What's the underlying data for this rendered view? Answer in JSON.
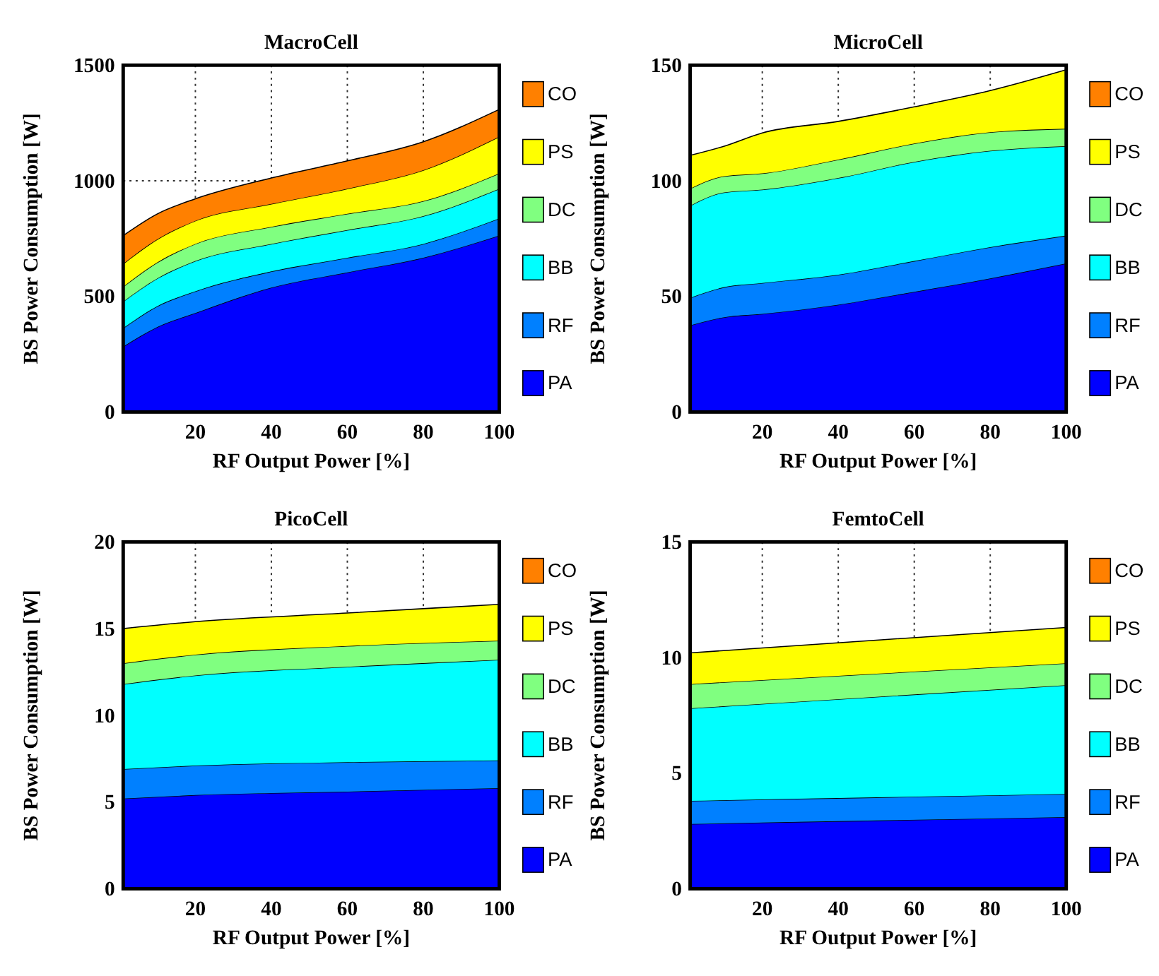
{
  "chart_data": [
    {
      "type": "area",
      "title": "MacroCell",
      "xlabel": "RF Output Power [%]",
      "ylabel": "BS Power Consumption [W]",
      "stacked": true,
      "x": [
        1,
        10,
        20,
        40,
        60,
        80,
        100
      ],
      "xlim": [
        1,
        100
      ],
      "xticks": [
        20,
        40,
        60,
        80,
        100
      ],
      "ylim": [
        0,
        1500
      ],
      "yticks": [
        0,
        500,
        1000,
        1500
      ],
      "grid": true,
      "legend": "right",
      "series": [
        {
          "name": "PA",
          "color": "#0000ff",
          "values": [
            283,
            368,
            428,
            538,
            604,
            667,
            763
          ]
        },
        {
          "name": "RF",
          "color": "#0080ff",
          "values": [
            80,
            90,
            94,
            70,
            63,
            60,
            74
          ]
        },
        {
          "name": "BB",
          "color": "#00ffff",
          "values": [
            115,
            120,
            131,
            119,
            120,
            120,
            129
          ]
        },
        {
          "name": "DC",
          "color": "#80ff80",
          "values": [
            64,
            69,
            74,
            74,
            70,
            65,
            66
          ]
        },
        {
          "name": "PS",
          "color": "#ffff00",
          "values": [
            99,
            100,
            100,
            99,
            109,
            134,
            159
          ]
        },
        {
          "name": "CO",
          "color": "#ff8000",
          "values": [
            122,
            110,
            95,
            112,
            120,
            123,
            118
          ]
        }
      ]
    },
    {
      "type": "area",
      "title": "MicroCell",
      "xlabel": "RF Output Power [%]",
      "ylabel": "BS Power Consumption [W]",
      "stacked": true,
      "x": [
        1,
        10,
        20,
        40,
        60,
        80,
        100
      ],
      "xlim": [
        1,
        100
      ],
      "xticks": [
        20,
        40,
        60,
        80,
        100
      ],
      "ylim": [
        0,
        150
      ],
      "yticks": [
        0,
        50,
        100,
        150
      ],
      "grid": true,
      "legend": "right",
      "series": [
        {
          "name": "PA",
          "color": "#0000ff",
          "values": [
            37.5,
            41,
            42.4,
            46.4,
            52,
            57.8,
            64.3
          ]
        },
        {
          "name": "RF",
          "color": "#0080ff",
          "values": [
            11.9,
            13,
            13.4,
            13,
            13.3,
            13.5,
            12
          ]
        },
        {
          "name": "BB",
          "color": "#00ffff",
          "values": [
            39.8,
            41,
            40.4,
            41.8,
            42.9,
            41.7,
            38.7
          ]
        },
        {
          "name": "DC",
          "color": "#80ff80",
          "values": [
            7.4,
            7,
            7,
            8,
            7.9,
            8,
            7.5
          ]
        },
        {
          "name": "PS",
          "color": "#ffff00",
          "values": [
            14.4,
            13,
            17.5,
            16.5,
            15.9,
            18,
            25.5
          ]
        },
        {
          "name": "CO",
          "color": "#ff8000",
          "values": [
            null,
            null,
            null,
            null,
            null,
            null,
            null
          ]
        }
      ]
    },
    {
      "type": "area",
      "title": "PicoCell",
      "xlabel": "RF Output Power [%]",
      "ylabel": "BS Power Consumption [W]",
      "stacked": true,
      "x": [
        1,
        20,
        60,
        100
      ],
      "xlim": [
        1,
        100
      ],
      "xticks": [
        20,
        40,
        60,
        80,
        100
      ],
      "ylim": [
        0,
        20
      ],
      "yticks": [
        0,
        5,
        10,
        15,
        20
      ],
      "grid": true,
      "legend": "right",
      "series": [
        {
          "name": "PA",
          "color": "#0000ff",
          "values": [
            5.2,
            5.4,
            5.6,
            5.8
          ]
        },
        {
          "name": "RF",
          "color": "#0080ff",
          "values": [
            1.7,
            1.7,
            1.7,
            1.6
          ]
        },
        {
          "name": "BB",
          "color": "#00ffff",
          "values": [
            4.9,
            5.2,
            5.5,
            5.8
          ]
        },
        {
          "name": "DC",
          "color": "#80ff80",
          "values": [
            1.2,
            1.2,
            1.2,
            1.1
          ]
        },
        {
          "name": "PS",
          "color": "#ffff00",
          "values": [
            2.0,
            1.9,
            1.9,
            2.1
          ]
        },
        {
          "name": "CO",
          "color": "#ff8000",
          "values": [
            null,
            null,
            null,
            null
          ]
        }
      ]
    },
    {
      "type": "area",
      "title": "FemtoCell",
      "xlabel": "RF Output Power [%]",
      "ylabel": "BS Power Consumption [W]",
      "stacked": true,
      "x": [
        1,
        50,
        100
      ],
      "xlim": [
        1,
        100
      ],
      "xticks": [
        20,
        40,
        60,
        80,
        100
      ],
      "ylim": [
        0,
        15
      ],
      "yticks": [
        0,
        5,
        10,
        15
      ],
      "grid": true,
      "legend": "right",
      "series": [
        {
          "name": "PA",
          "color": "#0000ff",
          "values": [
            2.8,
            2.95,
            3.1
          ]
        },
        {
          "name": "RF",
          "color": "#0080ff",
          "values": [
            1.0,
            1.0,
            1.0
          ]
        },
        {
          "name": "BB",
          "color": "#00ffff",
          "values": [
            4.0,
            4.35,
            4.7
          ]
        },
        {
          "name": "DC",
          "color": "#80ff80",
          "values": [
            1.05,
            1.0,
            0.95
          ]
        },
        {
          "name": "PS",
          "color": "#ffff00",
          "values": [
            1.35,
            1.45,
            1.55
          ]
        },
        {
          "name": "CO",
          "color": "#ff8000",
          "values": [
            null,
            null,
            null
          ]
        }
      ]
    }
  ]
}
